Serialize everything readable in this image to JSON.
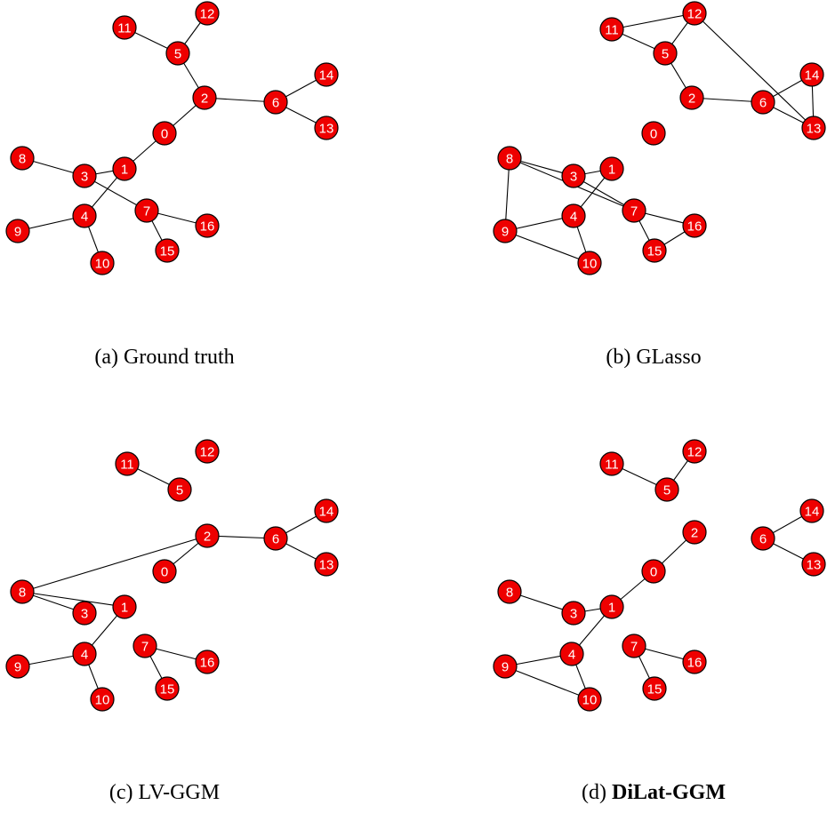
{
  "figure": {
    "panels": [
      {
        "id": "a",
        "caption_prefix": "(a) ",
        "caption_method": "Ground truth",
        "method_bold": false,
        "edges": [
          [
            11,
            5
          ],
          [
            5,
            12
          ],
          [
            5,
            2
          ],
          [
            2,
            6
          ],
          [
            6,
            14
          ],
          [
            6,
            13
          ],
          [
            2,
            0
          ],
          [
            0,
            1
          ],
          [
            1,
            3
          ],
          [
            1,
            4
          ],
          [
            8,
            3
          ],
          [
            3,
            7
          ],
          [
            7,
            16
          ],
          [
            7,
            15
          ],
          [
            4,
            9
          ],
          [
            4,
            10
          ]
        ]
      },
      {
        "id": "b",
        "caption_prefix": "(b) ",
        "caption_method": "GLasso",
        "method_bold": false,
        "edges": [
          [
            11,
            12
          ],
          [
            11,
            5
          ],
          [
            5,
            12
          ],
          [
            5,
            2
          ],
          [
            2,
            6
          ],
          [
            6,
            14
          ],
          [
            6,
            13
          ],
          [
            14,
            13
          ],
          [
            12,
            13
          ],
          [
            8,
            3
          ],
          [
            8,
            7
          ],
          [
            8,
            9
          ],
          [
            3,
            1
          ],
          [
            3,
            7
          ],
          [
            1,
            4
          ],
          [
            4,
            9
          ],
          [
            4,
            10
          ],
          [
            9,
            10
          ],
          [
            7,
            16
          ],
          [
            7,
            15
          ],
          [
            15,
            16
          ]
        ]
      },
      {
        "id": "c",
        "caption_prefix": "(c) ",
        "caption_method": "LV-GGM",
        "method_bold": false,
        "edges": [
          [
            11,
            5
          ],
          [
            8,
            2
          ],
          [
            2,
            0
          ],
          [
            2,
            6
          ],
          [
            6,
            14
          ],
          [
            6,
            13
          ],
          [
            8,
            3
          ],
          [
            8,
            1
          ],
          [
            1,
            4
          ],
          [
            4,
            9
          ],
          [
            4,
            10
          ],
          [
            7,
            16
          ],
          [
            7,
            15
          ]
        ]
      },
      {
        "id": "d",
        "caption_prefix": "(d) ",
        "caption_method": "DiLat-GGM",
        "method_bold": true,
        "edges": [
          [
            11,
            5
          ],
          [
            5,
            12
          ],
          [
            2,
            0
          ],
          [
            0,
            1
          ],
          [
            3,
            1
          ],
          [
            8,
            3
          ],
          [
            1,
            4
          ],
          [
            4,
            9
          ],
          [
            4,
            10
          ],
          [
            9,
            10
          ],
          [
            6,
            14
          ],
          [
            6,
            13
          ],
          [
            7,
            16
          ],
          [
            7,
            15
          ]
        ]
      }
    ]
  }
}
